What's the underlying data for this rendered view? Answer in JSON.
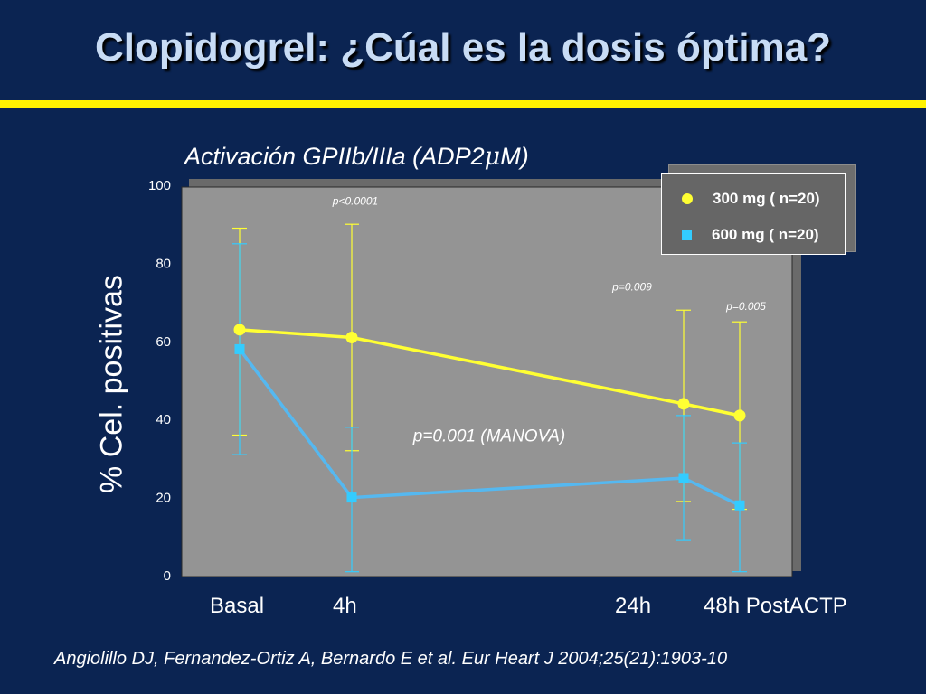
{
  "slide": {
    "title": "Clopidogrel: ¿Cúal es la dosis óptima?",
    "citation": "Angiolillo DJ, Fernandez-Ortiz A, Bernardo E et al. Eur Heart J 2004;25(21):1903-10"
  },
  "colors": {
    "background": "#0b2452",
    "title_rule": "#fff200",
    "plot_area": "#949494",
    "series_300mg": "#ffff33",
    "series_600mg": "#55b8f0"
  },
  "chart_data": {
    "type": "line",
    "title_prefix": "Activación GPIIb/IIIa (ADP2",
    "title_mu": "μ",
    "title_suffix": "M)",
    "ylabel": "% Cel. positivas",
    "ylim": [
      0,
      100
    ],
    "yticks": [
      "0",
      "20",
      "40",
      "60",
      "80",
      "100"
    ],
    "categories": [
      "Basal",
      "4h",
      "24h",
      "48h PostACTP"
    ],
    "x": [
      0,
      4,
      24,
      48
    ],
    "grid": false,
    "legend_position": "top-right",
    "series": [
      {
        "name": "300 mg ( n=20)",
        "marker": "circle",
        "values": [
          63,
          61,
          44,
          41
        ],
        "error_upper": [
          89,
          90,
          68,
          65
        ],
        "error_lower": [
          36,
          32,
          19,
          17
        ]
      },
      {
        "name": "600 mg ( n=20)",
        "marker": "square",
        "values": [
          58,
          20,
          25,
          18
        ],
        "error_upper": [
          85,
          38,
          41,
          34
        ],
        "error_lower": [
          31,
          1,
          9,
          1
        ]
      }
    ],
    "annotations": [
      {
        "text": "p<0.0001",
        "x": 4,
        "y": 96,
        "size": "small"
      },
      {
        "text": "p=0.009",
        "x": 24,
        "y": 74,
        "size": "small"
      },
      {
        "text": "p=0.005",
        "x": 48,
        "y": 69,
        "size": "small"
      },
      {
        "text": "p=0.001 (MANOVA)",
        "x": 24,
        "y": 36,
        "size": "large"
      }
    ]
  }
}
